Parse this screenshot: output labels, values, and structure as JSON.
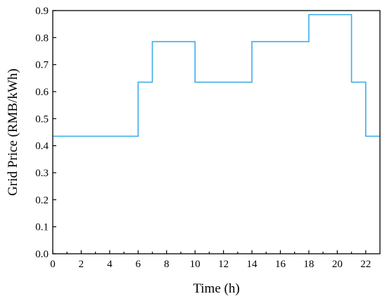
{
  "chart_data": {
    "type": "line",
    "step": "post",
    "xlabel": "Time (h)",
    "ylabel": "Grid Price (RMB/kWh)",
    "xlim": [
      0,
      23
    ],
    "ylim": [
      0.0,
      0.9
    ],
    "xticks": [
      "0",
      "2",
      "4",
      "6",
      "8",
      "10",
      "12",
      "14",
      "16",
      "18",
      "20",
      "22"
    ],
    "yticks": [
      "0.0",
      "0.1",
      "0.2",
      "0.3",
      "0.4",
      "0.5",
      "0.6",
      "0.7",
      "0.8",
      "0.9"
    ],
    "grid": false,
    "legend": false,
    "series": [
      {
        "color": "#3daee9",
        "x": [
          0,
          6,
          7,
          10,
          14,
          18,
          21,
          22,
          23
        ],
        "y": [
          0.435,
          0.635,
          0.785,
          0.635,
          0.785,
          0.885,
          0.635,
          0.435,
          0.435
        ]
      }
    ]
  }
}
